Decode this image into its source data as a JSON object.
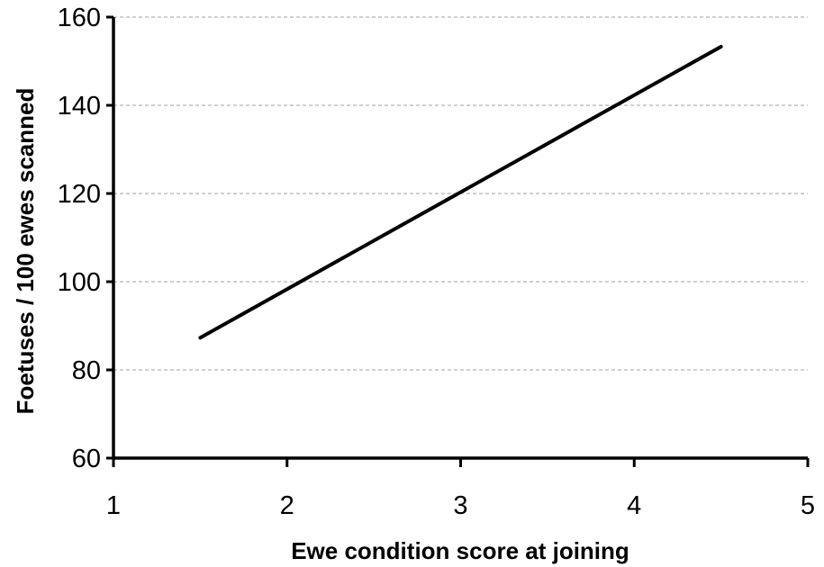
{
  "chart_data": {
    "type": "line",
    "title": "",
    "xlabel": "Ewe condition score at joining",
    "ylabel": "Foetuses / 100 ewes scanned",
    "xlim": [
      1,
      5
    ],
    "ylim": [
      60,
      160
    ],
    "xticks": [
      "1",
      "2",
      "3",
      "4",
      "5"
    ],
    "yticks": [
      "60",
      "80",
      "100",
      "120",
      "140",
      "160"
    ],
    "grid": "horizontal dashed",
    "legend": "none",
    "series": [
      {
        "x": [
          1.5,
          4.5
        ],
        "y": [
          87.3,
          153.3
        ]
      }
    ],
    "colors": {
      "line": "#000000",
      "axis": "#000000",
      "grid": "#b3b3b3"
    }
  }
}
